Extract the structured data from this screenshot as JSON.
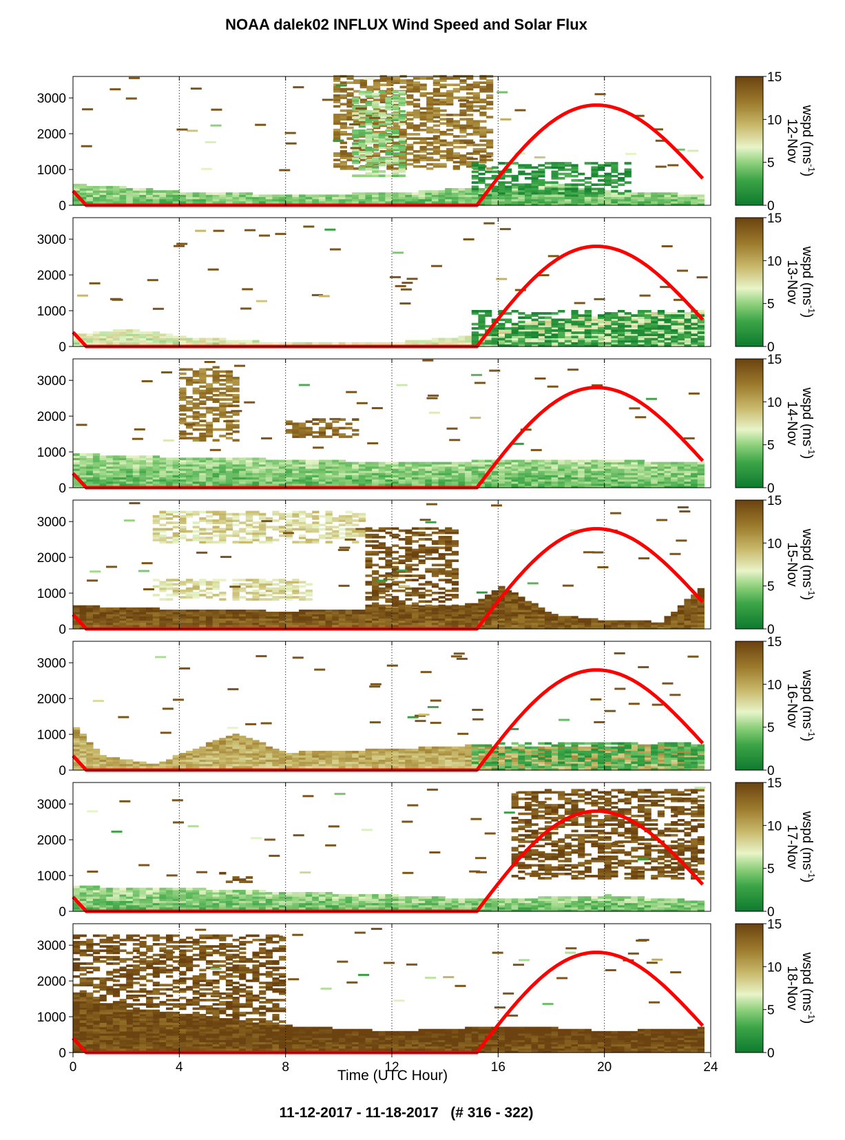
{
  "chart_data": {
    "type": "heatmap",
    "title": "NOAA dalek02 INFLUX Wind Speed and Solar Flux",
    "xlabel": "Time (UTC Hour)",
    "footer": "11-12-2017 - 11-18-2017   (# 316 - 322)",
    "xlim": [
      0,
      24
    ],
    "xticks": [
      "0",
      "4",
      "8",
      "12",
      "16",
      "20",
      "24"
    ],
    "ylim": [
      0,
      3600
    ],
    "yticks": [
      "0",
      "1000",
      "2000",
      "3000"
    ],
    "grid": "dotted vertical lines at 4, 8, 12, 16, 20",
    "colorbar": {
      "label": "wspd (ms-1)",
      "label_main": "wspd (ms",
      "label_sup": "-1",
      "label_end": ")",
      "ticks": [
        "0",
        "5",
        "10",
        "15"
      ],
      "range": [
        0,
        15
      ],
      "colors": [
        "#0d7a2e",
        "#3ea648",
        "#8ed07c",
        "#e8f4c8",
        "#c8b86a",
        "#9c7a2c",
        "#6b4210"
      ]
    },
    "solar_flux_color": "#ff0000",
    "solar_flux_curve": {
      "night_start": 0.5,
      "sunrise": 15.2,
      "peak_hour": 19.7,
      "peak_height": 2800,
      "end_hour": 23.7,
      "end_height": 750,
      "start_height": 400
    },
    "panels": [
      {
        "date": "12-Nov",
        "boundary_layer_top": [
          [
            0,
            580
          ],
          [
            2,
            500
          ],
          [
            4,
            380
          ],
          [
            8,
            300
          ],
          [
            12,
            350
          ],
          [
            15,
            500
          ],
          [
            18,
            600
          ],
          [
            20,
            400
          ],
          [
            23.7,
            300
          ]
        ],
        "low_wspd": 4,
        "features": [
          {
            "x0": 9.8,
            "x1": 15.8,
            "y0": 1000,
            "y1": 3600,
            "wspd": 12
          },
          {
            "x0": 10.5,
            "x1": 12.5,
            "y0": 800,
            "y1": 3200,
            "wspd": 5
          },
          {
            "x0": 15,
            "x1": 21,
            "y0": 250,
            "y1": 1200,
            "wspd": 2
          }
        ]
      },
      {
        "date": "13-Nov",
        "boundary_layer_top": [
          [
            0,
            350
          ],
          [
            2,
            500
          ],
          [
            4,
            280
          ],
          [
            8,
            100
          ],
          [
            12,
            120
          ],
          [
            15,
            300
          ],
          [
            17,
            700
          ],
          [
            20,
            900
          ],
          [
            23.7,
            1000
          ]
        ],
        "low_wspd": 6,
        "features": [
          {
            "x0": 15,
            "x1": 23.7,
            "y0": 0,
            "y1": 1000,
            "wspd": 2
          }
        ]
      },
      {
        "date": "14-Nov",
        "boundary_layer_top": [
          [
            0,
            950
          ],
          [
            4,
            850
          ],
          [
            8,
            800
          ],
          [
            12,
            700
          ],
          [
            15,
            750
          ],
          [
            20,
            780
          ],
          [
            23.7,
            700
          ]
        ],
        "low_wspd": 4,
        "features": [
          {
            "x0": 8,
            "x1": 10.6,
            "y0": 1400,
            "y1": 1900,
            "wspd": 13
          },
          {
            "x0": 4,
            "x1": 6.2,
            "y0": 1300,
            "y1": 3400,
            "wspd": 12
          }
        ]
      },
      {
        "date": "15-Nov",
        "boundary_layer_top": [
          [
            0,
            650
          ],
          [
            4,
            550
          ],
          [
            8,
            500
          ],
          [
            12,
            600
          ],
          [
            15,
            700
          ],
          [
            16,
            1200
          ],
          [
            18,
            400
          ],
          [
            20,
            250
          ],
          [
            22,
            200
          ],
          [
            23.7,
            1250
          ]
        ],
        "low_wspd": 13,
        "features": [
          {
            "x0": 3,
            "x1": 11,
            "y0": 2400,
            "y1": 3300,
            "wspd": 8
          },
          {
            "x0": 11,
            "x1": 14.5,
            "y0": 500,
            "y1": 2800,
            "wspd": 14
          },
          {
            "x0": 3,
            "x1": 9,
            "y0": 800,
            "y1": 1400,
            "wspd": 8
          }
        ]
      },
      {
        "date": "16-Nov",
        "boundary_layer_top": [
          [
            0,
            1200
          ],
          [
            1,
            400
          ],
          [
            3,
            150
          ],
          [
            4,
            500
          ],
          [
            6,
            1000
          ],
          [
            8,
            500
          ],
          [
            12,
            600
          ],
          [
            15,
            700
          ],
          [
            18,
            650
          ],
          [
            23.7,
            750
          ]
        ],
        "low_wspd": 9,
        "features": [
          {
            "x0": 15,
            "x1": 23.7,
            "y0": 0,
            "y1": 750,
            "wspd": 3
          }
        ]
      },
      {
        "date": "17-Nov",
        "boundary_layer_top": [
          [
            0,
            700
          ],
          [
            4,
            650
          ],
          [
            8,
            550
          ],
          [
            12,
            450
          ],
          [
            15,
            350
          ],
          [
            18,
            400
          ],
          [
            20,
            450
          ],
          [
            23.7,
            300
          ]
        ],
        "low_wspd": 4,
        "features": [
          {
            "x0": 16.5,
            "x1": 23.7,
            "y0": 900,
            "y1": 3400,
            "wspd": 14
          },
          {
            "x0": 5.5,
            "x1": 6.6,
            "y0": 800,
            "y1": 1100,
            "wspd": 14
          }
        ]
      },
      {
        "date": "18-Nov",
        "boundary_layer_top": [
          [
            0,
            1600
          ],
          [
            2,
            1200
          ],
          [
            4,
            1100
          ],
          [
            6,
            900
          ],
          [
            8,
            750
          ],
          [
            12,
            600
          ],
          [
            15,
            700
          ],
          [
            18,
            700
          ],
          [
            20,
            600
          ],
          [
            23.7,
            700
          ]
        ],
        "low_wspd": 14,
        "features": [
          {
            "x0": 0,
            "x1": 8,
            "y0": 600,
            "y1": 3300,
            "wspd": 14
          }
        ]
      }
    ]
  }
}
